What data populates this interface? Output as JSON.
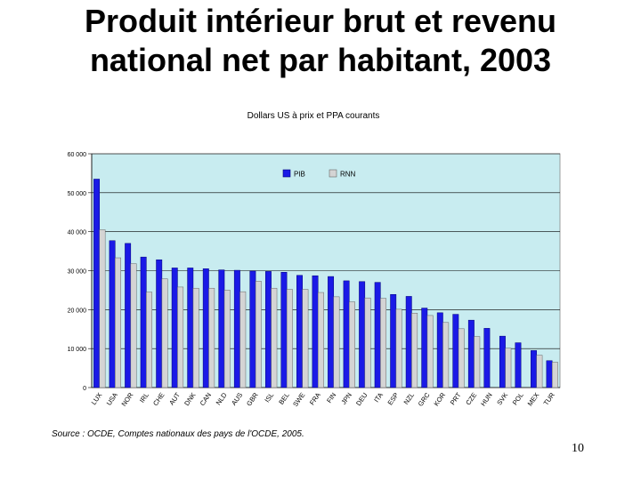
{
  "slide": {
    "title_line1": "Produit intérieur brut et revenu",
    "title_line2": "national net par habitant, 2003",
    "source": "Source : OCDE, Comptes nationaux des pays de l'OCDE, 2005.",
    "page_number": "10"
  },
  "chart_data": {
    "type": "bar",
    "subtitle": "Dollars US à prix et PPA courants",
    "categories": [
      "LUX",
      "USA",
      "NOR",
      "IRL",
      "CHE",
      "AUT",
      "DNK",
      "CAN",
      "NLD",
      "AUS",
      "GBR",
      "ISL",
      "BEL",
      "SWE",
      "FRA",
      "FIN",
      "JPN",
      "DEU",
      "ITA",
      "ESP",
      "NZL",
      "GRC",
      "KOR",
      "PRT",
      "CZE",
      "HUN",
      "SVK",
      "POL",
      "MEX",
      "TUR"
    ],
    "series": [
      {
        "name": "PIB",
        "color": "#1a1ae6",
        "values": [
          53500,
          37700,
          37000,
          33500,
          32800,
          30700,
          30700,
          30500,
          30200,
          30100,
          29900,
          29800,
          29600,
          28800,
          28700,
          28500,
          27400,
          27200,
          27000,
          23900,
          23400,
          20400,
          19200,
          18800,
          17300,
          15200,
          13200,
          11500,
          9500,
          6900
        ]
      },
      {
        "name": "RNN",
        "color": "#d4d4d4",
        "values": [
          40500,
          33300,
          31800,
          24500,
          27900,
          25800,
          25500,
          25500,
          25000,
          24600,
          27300,
          25500,
          25200,
          25200,
          24400,
          23300,
          22000,
          23000,
          22900,
          20100,
          19100,
          18500,
          16700,
          15100,
          13100,
          null,
          10100,
          null,
          8300,
          6500
        ]
      }
    ],
    "ylim": [
      0,
      60000
    ],
    "yticks": [
      0,
      10000,
      20000,
      30000,
      40000,
      50000,
      60000
    ],
    "ytick_labels": [
      "0",
      "10 000",
      "20 000",
      "30 000",
      "40 000",
      "50 000",
      "60 000"
    ],
    "legend": "top-center",
    "grid": true,
    "plot_background": "#c8ecf0"
  }
}
